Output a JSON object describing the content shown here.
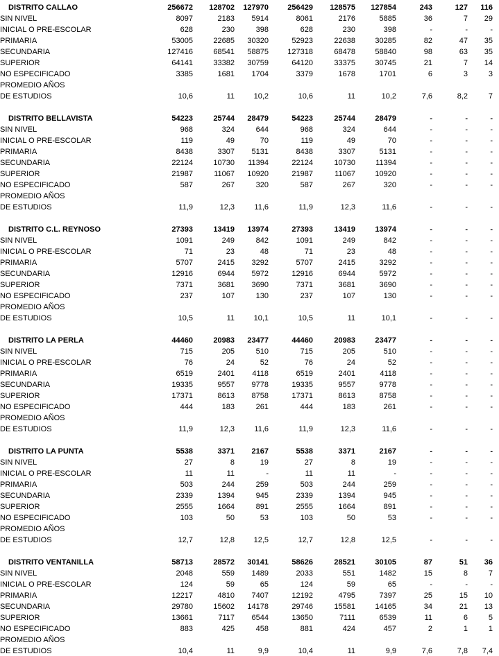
{
  "page": {
    "background": "#ffffff",
    "text_color": "#000000"
  },
  "table": {
    "row_labels": [
      "SIN NIVEL",
      "INICIAL O PRE-ESCOLAR",
      "PRIMARIA",
      "SECUNDARIA",
      "SUPERIOR",
      "NO ESPECIFICADO",
      "PROMEDIO AÑOS",
      "DE ESTUDIOS"
    ],
    "sections": [
      {
        "district": "DISTRITO CALLAO",
        "totals": [
          "256672",
          "128702",
          "127970",
          "256429",
          "128575",
          "127854",
          "243",
          "127",
          "116"
        ],
        "rows": [
          [
            "8097",
            "2183",
            "5914",
            "8061",
            "2176",
            "5885",
            "36",
            "7",
            "29"
          ],
          [
            "628",
            "230",
            "398",
            "628",
            "230",
            "398",
            "-",
            "-",
            "-"
          ],
          [
            "53005",
            "22685",
            "30320",
            "52923",
            "22638",
            "30285",
            "82",
            "47",
            "35"
          ],
          [
            "127416",
            "68541",
            "58875",
            "127318",
            "68478",
            "58840",
            "98",
            "63",
            "35"
          ],
          [
            "64141",
            "33382",
            "30759",
            "64120",
            "33375",
            "30745",
            "21",
            "7",
            "14"
          ],
          [
            "3385",
            "1681",
            "1704",
            "3379",
            "1678",
            "1701",
            "6",
            "3",
            "3"
          ],
          [
            "",
            "",
            "",
            "",
            "",
            "",
            "",
            "",
            ""
          ],
          [
            "10,6",
            "11",
            "10,2",
            "10,6",
            "11",
            "10,2",
            "7,6",
            "8,2",
            "7"
          ]
        ]
      },
      {
        "district": "DISTRITO BELLAVISTA",
        "totals": [
          "54223",
          "25744",
          "28479",
          "54223",
          "25744",
          "28479",
          "-",
          "-",
          "-"
        ],
        "rows": [
          [
            "968",
            "324",
            "644",
            "968",
            "324",
            "644",
            "-",
            "-",
            "-"
          ],
          [
            "119",
            "49",
            "70",
            "119",
            "49",
            "70",
            "-",
            "-",
            "-"
          ],
          [
            "8438",
            "3307",
            "5131",
            "8438",
            "3307",
            "5131",
            "-",
            "-",
            "-"
          ],
          [
            "22124",
            "10730",
            "11394",
            "22124",
            "10730",
            "11394",
            "-",
            "-",
            "-"
          ],
          [
            "21987",
            "11067",
            "10920",
            "21987",
            "11067",
            "10920",
            "-",
            "-",
            "-"
          ],
          [
            "587",
            "267",
            "320",
            "587",
            "267",
            "320",
            "-",
            "-",
            "-"
          ],
          [
            "",
            "",
            "",
            "",
            "",
            "",
            "",
            "",
            ""
          ],
          [
            "11,9",
            "12,3",
            "11,6",
            "11,9",
            "12,3",
            "11,6",
            "-",
            "-",
            "-"
          ]
        ]
      },
      {
        "district": "DISTRITO C.L. REYNOSO",
        "totals": [
          "27393",
          "13419",
          "13974",
          "27393",
          "13419",
          "13974",
          "-",
          "-",
          "-"
        ],
        "rows": [
          [
            "1091",
            "249",
            "842",
            "1091",
            "249",
            "842",
            "-",
            "-",
            "-"
          ],
          [
            "71",
            "23",
            "48",
            "71",
            "23",
            "48",
            "-",
            "-",
            "-"
          ],
          [
            "5707",
            "2415",
            "3292",
            "5707",
            "2415",
            "3292",
            "-",
            "-",
            "-"
          ],
          [
            "12916",
            "6944",
            "5972",
            "12916",
            "6944",
            "5972",
            "-",
            "-",
            "-"
          ],
          [
            "7371",
            "3681",
            "3690",
            "7371",
            "3681",
            "3690",
            "-",
            "-",
            "-"
          ],
          [
            "237",
            "107",
            "130",
            "237",
            "107",
            "130",
            "-",
            "-",
            "-"
          ],
          [
            "",
            "",
            "",
            "",
            "",
            "",
            "",
            "",
            ""
          ],
          [
            "10,5",
            "11",
            "10,1",
            "10,5",
            "11",
            "10,1",
            "-",
            "-",
            "-"
          ]
        ]
      },
      {
        "district": "DISTRITO LA PERLA",
        "totals": [
          "44460",
          "20983",
          "23477",
          "44460",
          "20983",
          "23477",
          "-",
          "-",
          "-"
        ],
        "rows": [
          [
            "715",
            "205",
            "510",
            "715",
            "205",
            "510",
            "-",
            "-",
            "-"
          ],
          [
            "76",
            "24",
            "52",
            "76",
            "24",
            "52",
            "-",
            "-",
            "-"
          ],
          [
            "6519",
            "2401",
            "4118",
            "6519",
            "2401",
            "4118",
            "-",
            "-",
            "-"
          ],
          [
            "19335",
            "9557",
            "9778",
            "19335",
            "9557",
            "9778",
            "-",
            "-",
            "-"
          ],
          [
            "17371",
            "8613",
            "8758",
            "17371",
            "8613",
            "8758",
            "-",
            "-",
            "-"
          ],
          [
            "444",
            "183",
            "261",
            "444",
            "183",
            "261",
            "-",
            "-",
            "-"
          ],
          [
            "",
            "",
            "",
            "",
            "",
            "",
            "",
            "",
            ""
          ],
          [
            "11,9",
            "12,3",
            "11,6",
            "11,9",
            "12,3",
            "11,6",
            "-",
            "-",
            "-"
          ]
        ]
      },
      {
        "district": "DISTRITO LA PUNTA",
        "totals": [
          "5538",
          "3371",
          "2167",
          "5538",
          "3371",
          "2167",
          "-",
          "-",
          "-"
        ],
        "rows": [
          [
            "27",
            "8",
            "19",
            "27",
            "8",
            "19",
            "-",
            "-",
            "-"
          ],
          [
            "11",
            "11",
            "-",
            "11",
            "11",
            "-",
            "-",
            "-",
            "-"
          ],
          [
            "503",
            "244",
            "259",
            "503",
            "244",
            "259",
            "-",
            "-",
            "-"
          ],
          [
            "2339",
            "1394",
            "945",
            "2339",
            "1394",
            "945",
            "-",
            "-",
            "-"
          ],
          [
            "2555",
            "1664",
            "891",
            "2555",
            "1664",
            "891",
            "-",
            "-",
            "-"
          ],
          [
            "103",
            "50",
            "53",
            "103",
            "50",
            "53",
            "-",
            "-",
            "-"
          ],
          [
            "",
            "",
            "",
            "",
            "",
            "",
            "",
            "",
            ""
          ],
          [
            "12,7",
            "12,8",
            "12,5",
            "12,7",
            "12,8",
            "12,5",
            "-",
            "-",
            "-"
          ]
        ]
      },
      {
        "district": "DISTRITO VENTANILLA",
        "totals": [
          "58713",
          "28572",
          "30141",
          "58626",
          "28521",
          "30105",
          "87",
          "51",
          "36"
        ],
        "rows": [
          [
            "2048",
            "559",
            "1489",
            "2033",
            "551",
            "1482",
            "15",
            "8",
            "7"
          ],
          [
            "124",
            "59",
            "65",
            "124",
            "59",
            "65",
            "-",
            "-",
            "-"
          ],
          [
            "12217",
            "4810",
            "7407",
            "12192",
            "4795",
            "7397",
            "25",
            "15",
            "10"
          ],
          [
            "29780",
            "15602",
            "14178",
            "29746",
            "15581",
            "14165",
            "34",
            "21",
            "13"
          ],
          [
            "13661",
            "7117",
            "6544",
            "13650",
            "7111",
            "6539",
            "11",
            "6",
            "5"
          ],
          [
            "883",
            "425",
            "458",
            "881",
            "424",
            "457",
            "2",
            "1",
            "1"
          ],
          [
            "",
            "",
            "",
            "",
            "",
            "",
            "",
            "",
            ""
          ],
          [
            "10,4",
            "11",
            "9,9",
            "10,4",
            "11",
            "9,9",
            "7,6",
            "7,8",
            "7,4"
          ]
        ]
      }
    ]
  }
}
